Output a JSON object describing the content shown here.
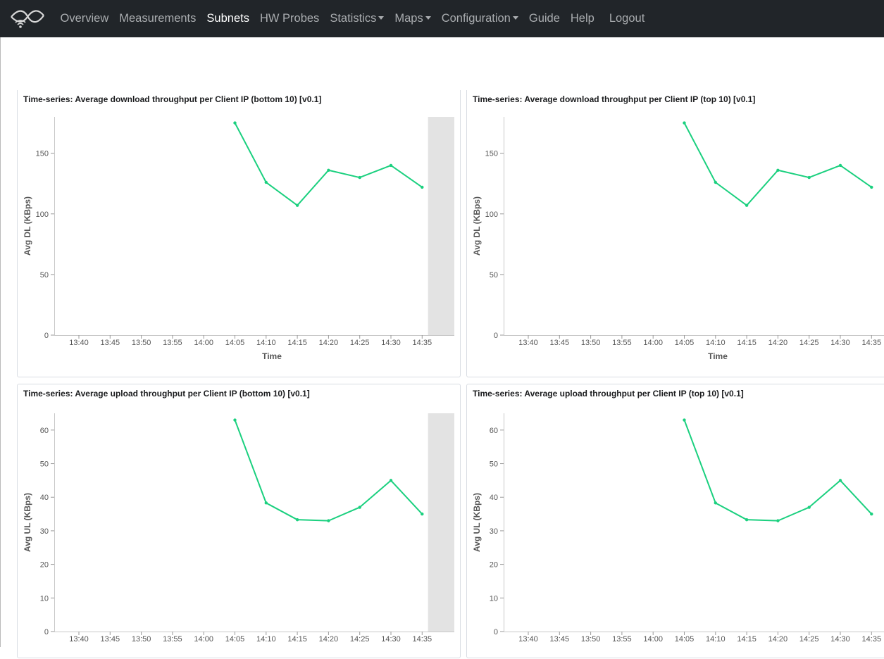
{
  "navbar": {
    "logo_icon": "wireless-signal-logo-icon",
    "links": [
      {
        "label": "Overview",
        "active": false,
        "dropdown": false
      },
      {
        "label": "Measurements",
        "active": false,
        "dropdown": false
      },
      {
        "label": "Subnets",
        "active": true,
        "dropdown": false
      },
      {
        "label": "HW Probes",
        "active": false,
        "dropdown": false
      },
      {
        "label": "Statistics",
        "active": false,
        "dropdown": true
      },
      {
        "label": "Maps",
        "active": false,
        "dropdown": true
      },
      {
        "label": "Configuration",
        "active": false,
        "dropdown": true
      },
      {
        "label": "Guide",
        "active": false,
        "dropdown": false
      },
      {
        "label": "Help",
        "active": false,
        "dropdown": false
      },
      {
        "label": "Logout",
        "active": false,
        "dropdown": false
      }
    ]
  },
  "colors": {
    "navbar_bg": "#212529",
    "nav_link": "#a9acaf",
    "nav_link_active": "#ffffff",
    "series_line": "#1bd07f",
    "panel_border": "#d9dde3",
    "highlight_band": "#e3e3e3"
  },
  "panels": [
    {
      "title": "Time-series: Average download throughput per Client IP (bottom 10) [v0.1]"
    },
    {
      "title": "Time-series: Average download throughput per Client IP (top 10) [v0.1]"
    },
    {
      "title": "Time-series: Average upload throughput per Client IP (bottom 10) [v0.1]"
    },
    {
      "title": "Time-series: Average upload throughput per Client IP (top 10) [v0.1]"
    }
  ],
  "chart_data": [
    {
      "type": "line",
      "title": "Time-series: Average download throughput per Client IP (bottom 10) [v0.1]",
      "xlabel": "Time",
      "ylabel": "Avg DL (KBps)",
      "x_ticks": [
        "13:40",
        "13:45",
        "13:50",
        "13:55",
        "14:00",
        "14:05",
        "14:10",
        "14:15",
        "14:20",
        "14:25",
        "14:30",
        "14:35"
      ],
      "y_ticks": [
        0,
        50,
        100,
        150
      ],
      "ylim": [
        0,
        180
      ],
      "xlim": [
        "13:37",
        "14:39"
      ],
      "grid": false,
      "shaded_region": [
        "14:36",
        "14:39"
      ],
      "series": [
        {
          "x": [
            "14:05",
            "14:10",
            "14:15",
            "14:20",
            "14:25",
            "14:30",
            "14:35"
          ],
          "values": [
            175,
            126,
            107,
            136,
            130,
            140,
            122
          ]
        }
      ]
    },
    {
      "type": "line",
      "title": "Time-series: Average download throughput per Client IP (top 10) [v0.1]",
      "xlabel": "Time",
      "ylabel": "Avg DL (KBps)",
      "x_ticks": [
        "13:40",
        "13:45",
        "13:50",
        "13:55",
        "14:00",
        "14:05",
        "14:10",
        "14:15",
        "14:20",
        "14:25",
        "14:30",
        "14:35"
      ],
      "y_ticks": [
        0,
        50,
        100,
        150
      ],
      "ylim": [
        0,
        180
      ],
      "xlim": [
        "13:37",
        "14:39"
      ],
      "grid": false,
      "series": [
        {
          "x": [
            "14:05",
            "14:10",
            "14:15",
            "14:20",
            "14:25",
            "14:30",
            "14:35"
          ],
          "values": [
            175,
            126,
            107,
            136,
            130,
            140,
            122
          ]
        }
      ]
    },
    {
      "type": "line",
      "title": "Time-series: Average upload throughput per Client IP (bottom 10) [v0.1]",
      "xlabel": "",
      "ylabel": "Avg UL (KBps)",
      "x_ticks": [
        "13:40",
        "13:45",
        "13:50",
        "13:55",
        "14:00",
        "14:05",
        "14:10",
        "14:15",
        "14:20",
        "14:25",
        "14:30",
        "14:35"
      ],
      "y_ticks": [
        0,
        10,
        20,
        30,
        40,
        50,
        60
      ],
      "ylim": [
        0,
        65
      ],
      "xlim": [
        "13:37",
        "14:39"
      ],
      "grid": false,
      "shaded_region": [
        "14:36",
        "14:39"
      ],
      "series": [
        {
          "x": [
            "14:05",
            "14:10",
            "14:15",
            "14:20",
            "14:25",
            "14:30",
            "14:35"
          ],
          "values": [
            63,
            38.3,
            33.3,
            33,
            37,
            45,
            35
          ]
        }
      ]
    },
    {
      "type": "line",
      "title": "Time-series: Average upload throughput per Client IP (top 10) [v0.1]",
      "xlabel": "",
      "ylabel": "Avg UL (KBps)",
      "x_ticks": [
        "13:40",
        "13:45",
        "13:50",
        "13:55",
        "14:00",
        "14:05",
        "14:10",
        "14:15",
        "14:20",
        "14:25",
        "14:30",
        "14:35"
      ],
      "y_ticks": [
        0,
        10,
        20,
        30,
        40,
        50,
        60
      ],
      "ylim": [
        0,
        65
      ],
      "xlim": [
        "13:37",
        "14:39"
      ],
      "grid": false,
      "series": [
        {
          "x": [
            "14:05",
            "14:10",
            "14:15",
            "14:20",
            "14:25",
            "14:30",
            "14:35"
          ],
          "values": [
            63,
            38.3,
            33.3,
            33,
            37,
            45,
            35
          ]
        }
      ]
    }
  ]
}
